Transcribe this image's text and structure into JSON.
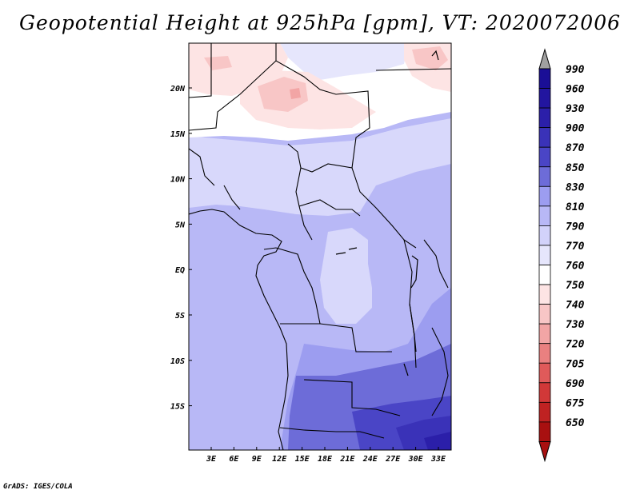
{
  "title": "Geopotential Height at 925hPa [gpm], VT: 2020072006",
  "credit": "GrADS: IGES/COLA",
  "map": {
    "lat_labels": [
      "20N",
      "15N",
      "10N",
      "5N",
      "EQ",
      "5S",
      "10S",
      "15S"
    ],
    "lon_labels": [
      "3E",
      "6E",
      "9E",
      "12E",
      "15E",
      "18E",
      "21E",
      "24E",
      "27E",
      "30E",
      "33E"
    ]
  },
  "colorbar": {
    "levels": [
      {
        "value": "990",
        "color": "#1a0e96"
      },
      {
        "value": "960",
        "color": "#22159f"
      },
      {
        "value": "930",
        "color": "#2b1fa9"
      },
      {
        "value": "900",
        "color": "#3a32b8"
      },
      {
        "value": "870",
        "color": "#4a45c6"
      },
      {
        "value": "850",
        "color": "#6d6cd8"
      },
      {
        "value": "830",
        "color": "#9c9df0"
      },
      {
        "value": "810",
        "color": "#b8b8f6"
      },
      {
        "value": "790",
        "color": "#d2d2fa"
      },
      {
        "value": "770",
        "color": "#e6e6fc"
      },
      {
        "value": "760",
        "color": "#ffffff"
      },
      {
        "value": "750",
        "color": "#fde4e4"
      },
      {
        "value": "740",
        "color": "#f8c6c6"
      },
      {
        "value": "730",
        "color": "#f2a5a5"
      },
      {
        "value": "720",
        "color": "#ea8080"
      },
      {
        "value": "705",
        "color": "#e05a5a"
      },
      {
        "value": "690",
        "color": "#d13838"
      },
      {
        "value": "675",
        "color": "#bf2222"
      },
      {
        "value": "650",
        "color": "#a81010"
      }
    ],
    "arrow_top_color": "#a0a0a0",
    "arrow_bottom_color": "#a81010"
  },
  "colors": {
    "land_base": "#b8b8f6",
    "border": "#000000"
  }
}
